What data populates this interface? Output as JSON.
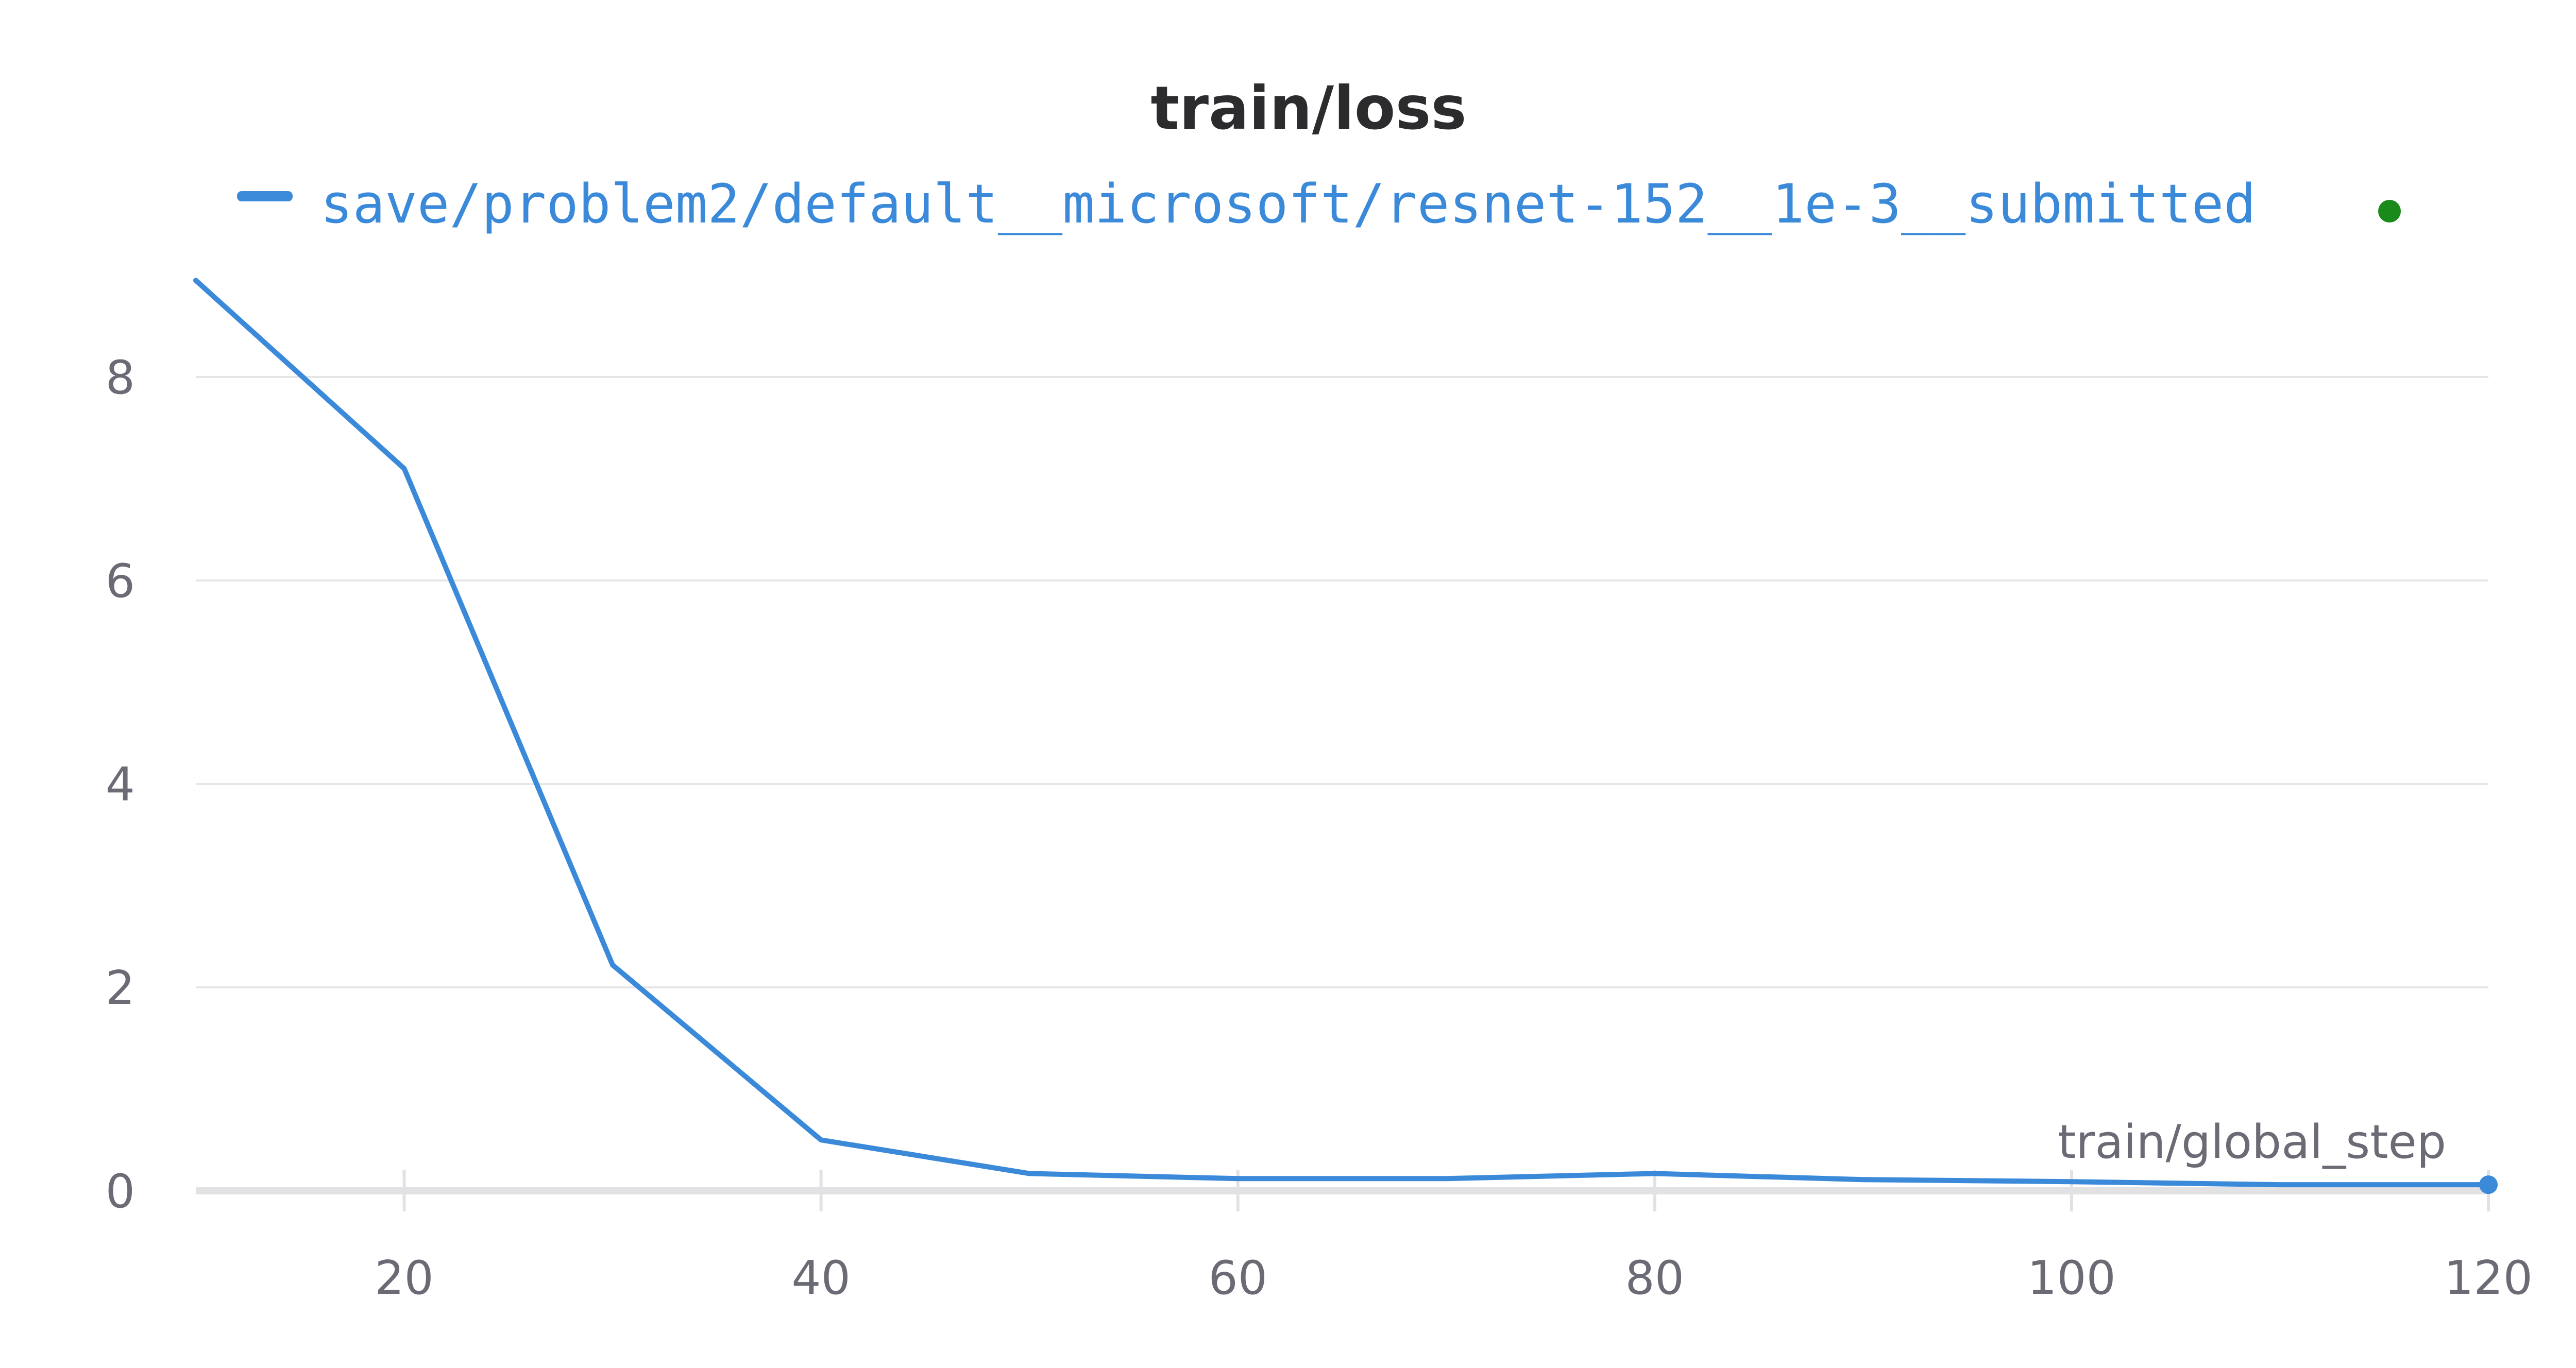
{
  "chart_data": {
    "type": "line",
    "title": "train/loss",
    "xlabel": "train/global_step",
    "ylabel": "",
    "xlim": [
      10,
      120
    ],
    "ylim": [
      0,
      9.2
    ],
    "x_ticks": [
      20,
      40,
      60,
      80,
      100,
      120
    ],
    "y_ticks": [
      0,
      2,
      4,
      6,
      8
    ],
    "grid": true,
    "legend_position": "top",
    "series": [
      {
        "name": "save/problem2/default__microsoft/resnet-152__1e-3__submitted",
        "color": "#3b8ad9",
        "x": [
          10,
          20,
          30,
          40,
          50,
          60,
          70,
          80,
          90,
          100,
          110,
          120
        ],
        "values": [
          8.95,
          7.1,
          2.22,
          0.5,
          0.17,
          0.12,
          0.12,
          0.17,
          0.11,
          0.09,
          0.06,
          0.06
        ]
      }
    ],
    "status_dot_color": "#1a8a1a"
  }
}
